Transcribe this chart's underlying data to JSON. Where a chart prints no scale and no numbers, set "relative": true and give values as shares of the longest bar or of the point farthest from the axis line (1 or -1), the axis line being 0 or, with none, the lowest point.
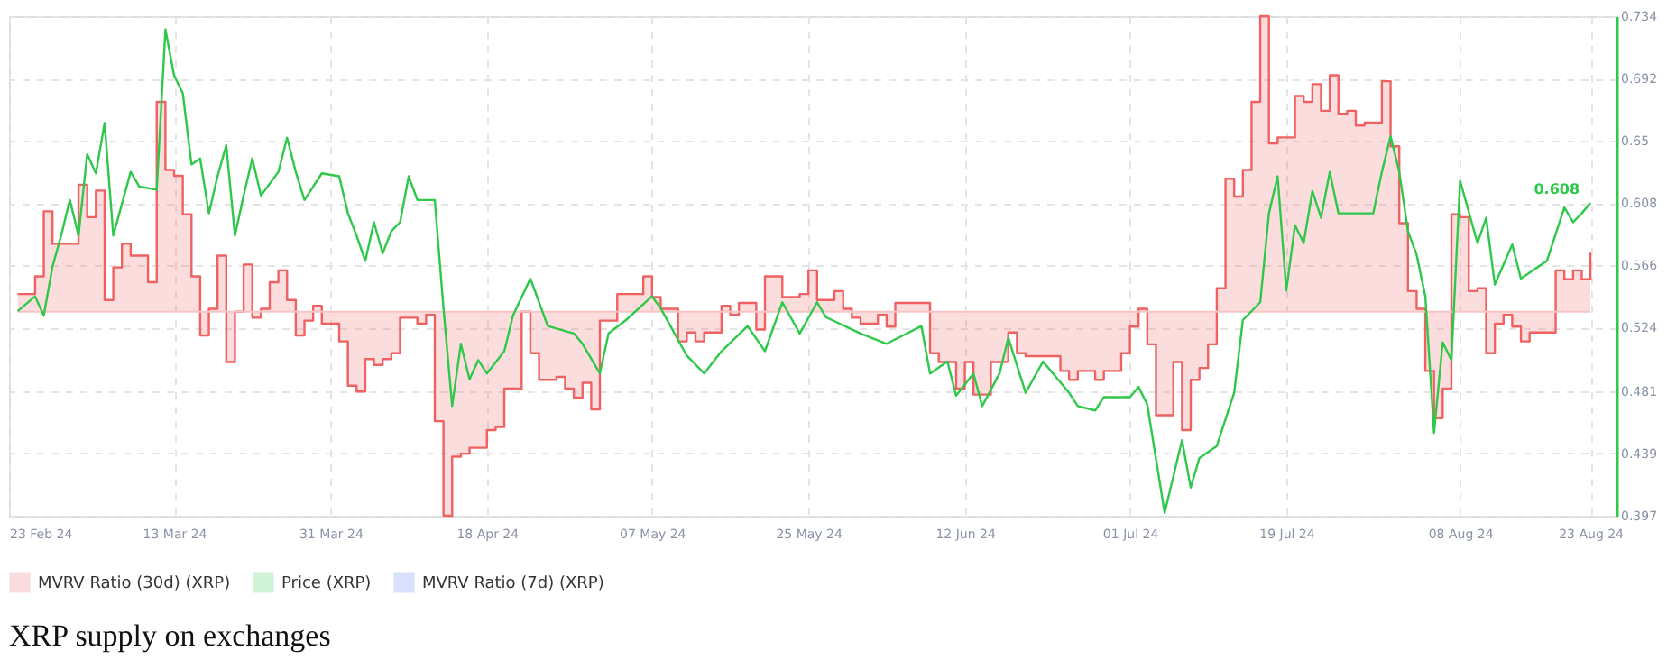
{
  "chart_data": {
    "type": "line",
    "title": "XRP supply on exchanges",
    "relative": true,
    "grid": true,
    "legend": "bottom",
    "xlim": [
      "2024-02-23",
      "2024-08-26"
    ],
    "xticks": [
      {
        "value": "2024-02-23",
        "label": "23 Feb 24"
      },
      {
        "value": "2024-03-13",
        "label": "13 Mar 24"
      },
      {
        "value": "2024-03-31",
        "label": "31 Mar 24"
      },
      {
        "value": "2024-04-18",
        "label": "18 Apr 24"
      },
      {
        "value": "2024-05-07",
        "label": "07 May 24"
      },
      {
        "value": "2024-05-25",
        "label": "25 May 24"
      },
      {
        "value": "2024-06-12",
        "label": "12 Jun 24"
      },
      {
        "value": "2024-07-01",
        "label": "01 Jul 24"
      },
      {
        "value": "2024-07-19",
        "label": "19 Jul 24"
      },
      {
        "value": "2024-08-08",
        "label": "08 Aug 24"
      },
      {
        "value": "2024-08-23",
        "label": "23 Aug 24"
      }
    ],
    "y2lim": [
      0.397,
      0.734
    ],
    "y2ticks": [
      0.397,
      0.439,
      0.481,
      0.524,
      0.566,
      0.608,
      0.65,
      0.692,
      0.734
    ],
    "annotations": [
      "0.608"
    ],
    "ref_lines": [
      {
        "axis": "y",
        "value": 0,
        "color": "#f8c4c4"
      }
    ],
    "series": [
      {
        "name": "MVRV Ratio (30d) (XRP)",
        "type": "step",
        "color": "#f06262",
        "x": [
          "2024-02-24",
          "2024-02-26",
          "2024-02-27",
          "2024-02-28",
          "2024-03-02",
          "2024-03-03",
          "2024-03-04",
          "2024-03-05",
          "2024-03-06",
          "2024-03-07",
          "2024-03-08",
          "2024-03-10",
          "2024-03-11",
          "2024-03-12",
          "2024-03-13",
          "2024-03-14",
          "2024-03-15",
          "2024-03-16",
          "2024-03-17",
          "2024-03-18",
          "2024-03-19",
          "2024-03-20",
          "2024-03-21",
          "2024-03-22",
          "2024-03-23",
          "2024-03-24",
          "2024-03-25",
          "2024-03-26",
          "2024-03-27",
          "2024-03-28",
          "2024-03-29",
          "2024-03-30",
          "2024-04-01",
          "2024-04-02",
          "2024-04-03",
          "2024-04-04",
          "2024-04-05",
          "2024-04-06",
          "2024-04-07",
          "2024-04-08",
          "2024-04-10",
          "2024-04-11",
          "2024-04-12",
          "2024-04-13",
          "2024-04-14",
          "2024-04-15",
          "2024-04-16",
          "2024-04-18",
          "2024-04-19",
          "2024-04-20",
          "2024-04-22",
          "2024-04-23",
          "2024-04-24",
          "2024-04-26",
          "2024-04-27",
          "2024-04-28",
          "2024-04-29",
          "2024-04-30",
          "2024-05-01",
          "2024-05-03",
          "2024-05-06",
          "2024-05-07",
          "2024-05-08",
          "2024-05-10",
          "2024-05-11",
          "2024-05-12",
          "2024-05-13",
          "2024-05-15",
          "2024-05-16",
          "2024-05-17",
          "2024-05-19",
          "2024-05-20",
          "2024-05-22",
          "2024-05-24",
          "2024-05-25",
          "2024-05-26",
          "2024-05-28",
          "2024-05-29",
          "2024-05-30",
          "2024-05-31",
          "2024-06-02",
          "2024-06-03",
          "2024-06-04",
          "2024-06-08",
          "2024-06-09",
          "2024-06-11",
          "2024-06-12",
          "2024-06-13",
          "2024-06-15",
          "2024-06-17",
          "2024-06-18",
          "2024-06-19",
          "2024-06-23",
          "2024-06-24",
          "2024-06-25",
          "2024-06-27",
          "2024-06-28",
          "2024-06-30",
          "2024-07-01",
          "2024-07-02",
          "2024-07-03",
          "2024-07-04",
          "2024-07-06",
          "2024-07-07",
          "2024-07-08",
          "2024-07-09",
          "2024-07-10",
          "2024-07-11",
          "2024-07-12",
          "2024-07-13",
          "2024-07-14",
          "2024-07-15",
          "2024-07-16",
          "2024-07-17",
          "2024-07-18",
          "2024-07-20",
          "2024-07-21",
          "2024-07-22",
          "2024-07-23",
          "2024-07-24",
          "2024-07-25",
          "2024-07-26",
          "2024-07-27",
          "2024-07-28",
          "2024-07-30",
          "2024-07-31",
          "2024-08-01",
          "2024-08-02",
          "2024-08-03",
          "2024-08-04",
          "2024-08-05",
          "2024-08-06",
          "2024-08-07",
          "2024-08-08",
          "2024-08-09",
          "2024-08-10",
          "2024-08-11",
          "2024-08-12",
          "2024-08-13",
          "2024-08-14",
          "2024-08-15",
          "2024-08-16",
          "2024-08-19",
          "2024-08-20",
          "2024-08-21",
          "2024-08-22",
          "2024-08-23"
        ],
        "values": [
          0.06,
          0.12,
          0.34,
          0.23,
          0.43,
          0.32,
          0.41,
          0.04,
          0.15,
          0.23,
          0.19,
          0.1,
          0.71,
          0.48,
          0.46,
          0.33,
          0.12,
          -0.08,
          0.01,
          0.19,
          -0.17,
          0,
          0.16,
          -0.02,
          0.01,
          0.1,
          0.14,
          0.04,
          -0.08,
          -0.03,
          0.02,
          -0.04,
          -0.1,
          -0.25,
          -0.27,
          -0.16,
          -0.18,
          -0.16,
          -0.14,
          -0.02,
          -0.04,
          -0.01,
          -0.37,
          -0.69,
          -0.49,
          -0.48,
          -0.46,
          -0.4,
          -0.39,
          -0.26,
          0,
          -0.14,
          -0.23,
          -0.22,
          -0.26,
          -0.29,
          -0.24,
          -0.33,
          -0.03,
          0.06,
          0.12,
          0.05,
          0.01,
          -0.1,
          -0.07,
          -0.1,
          -0.07,
          0.02,
          -0.01,
          0.03,
          -0.06,
          0.12,
          0.05,
          0.06,
          0.14,
          0.04,
          0.07,
          0.01,
          -0.02,
          -0.04,
          -0.01,
          -0.05,
          0.03,
          -0.14,
          -0.17,
          -0.26,
          -0.17,
          -0.28,
          -0.17,
          -0.07,
          -0.14,
          -0.15,
          -0.2,
          -0.23,
          -0.2,
          -0.23,
          -0.2,
          -0.14,
          -0.05,
          0.01,
          -0.11,
          -0.35,
          -0.17,
          -0.4,
          -0.23,
          -0.19,
          -0.11,
          0.08,
          0.45,
          0.39,
          0.48,
          0.71,
          1.0,
          0.57,
          0.59,
          0.73,
          0.71,
          0.77,
          0.68,
          0.8,
          0.67,
          0.68,
          0.63,
          0.64,
          0.78,
          0.56,
          0.3,
          0.07,
          0.01,
          -0.2,
          -0.36,
          -0.26,
          0.33,
          0.32,
          0.07,
          0.08,
          -0.14,
          -0.04,
          -0.01,
          -0.05,
          -0.1,
          -0.07,
          0.14,
          0.11,
          0.14,
          0.11,
          0.2
        ]
      },
      {
        "name": "Price (XRP)",
        "axis": "y2",
        "color": "#2ec84a",
        "x": [
          "2024-02-24",
          "2024-02-26",
          "2024-02-27",
          "2024-02-28",
          "2024-02-29",
          "2024-03-01",
          "2024-03-02",
          "2024-03-03",
          "2024-03-04",
          "2024-03-05",
          "2024-03-06",
          "2024-03-08",
          "2024-03-09",
          "2024-03-11",
          "2024-03-12",
          "2024-03-13",
          "2024-03-14",
          "2024-03-15",
          "2024-03-16",
          "2024-03-17",
          "2024-03-18",
          "2024-03-19",
          "2024-03-20",
          "2024-03-21",
          "2024-03-22",
          "2024-03-23",
          "2024-03-25",
          "2024-03-26",
          "2024-03-27",
          "2024-03-28",
          "2024-03-30",
          "2024-04-01",
          "2024-04-02",
          "2024-04-03",
          "2024-04-04",
          "2024-04-05",
          "2024-04-06",
          "2024-04-07",
          "2024-04-08",
          "2024-04-09",
          "2024-04-10",
          "2024-04-12",
          "2024-04-13",
          "2024-04-14",
          "2024-04-15",
          "2024-04-16",
          "2024-04-17",
          "2024-04-18",
          "2024-04-20",
          "2024-04-21",
          "2024-04-23",
          "2024-04-24",
          "2024-04-25",
          "2024-04-28",
          "2024-04-29",
          "2024-05-01",
          "2024-05-02",
          "2024-05-04",
          "2024-05-07",
          "2024-05-08",
          "2024-05-11",
          "2024-05-13",
          "2024-05-15",
          "2024-05-18",
          "2024-05-20",
          "2024-05-22",
          "2024-05-24",
          "2024-05-26",
          "2024-05-27",
          "2024-05-31",
          "2024-06-03",
          "2024-06-07",
          "2024-06-08",
          "2024-06-10",
          "2024-06-11",
          "2024-06-13",
          "2024-06-14",
          "2024-06-16",
          "2024-06-17",
          "2024-06-19",
          "2024-06-21",
          "2024-06-24",
          "2024-06-25",
          "2024-06-27",
          "2024-06-28",
          "2024-07-01",
          "2024-07-02",
          "2024-07-03",
          "2024-07-05",
          "2024-07-07",
          "2024-07-08",
          "2024-07-09",
          "2024-07-11",
          "2024-07-13",
          "2024-07-14",
          "2024-07-16",
          "2024-07-17",
          "2024-07-18",
          "2024-07-19",
          "2024-07-20",
          "2024-07-21",
          "2024-07-22",
          "2024-07-23",
          "2024-07-24",
          "2024-07-25",
          "2024-07-27",
          "2024-07-29",
          "2024-07-30",
          "2024-07-31",
          "2024-08-01",
          "2024-08-02",
          "2024-08-03",
          "2024-08-04",
          "2024-08-05",
          "2024-08-06",
          "2024-08-07",
          "2024-08-08",
          "2024-08-10",
          "2024-08-11",
          "2024-08-12",
          "2024-08-14",
          "2024-08-15",
          "2024-08-17",
          "2024-08-18",
          "2024-08-20",
          "2024-08-21",
          "2024-08-22",
          "2024-08-23"
        ],
        "values": [
          0.535,
          0.545,
          0.532,
          0.565,
          0.586,
          0.61,
          0.586,
          0.641,
          0.628,
          0.662,
          0.586,
          0.629,
          0.619,
          0.617,
          0.725,
          0.694,
          0.682,
          0.634,
          0.638,
          0.601,
          0.626,
          0.647,
          0.586,
          0.613,
          0.638,
          0.613,
          0.629,
          0.652,
          0.629,
          0.61,
          0.628,
          0.626,
          0.601,
          0.586,
          0.569,
          0.595,
          0.574,
          0.589,
          0.595,
          0.626,
          0.61,
          0.61,
          0.537,
          0.471,
          0.513,
          0.489,
          0.502,
          0.493,
          0.508,
          0.532,
          0.557,
          0.541,
          0.525,
          0.52,
          0.513,
          0.493,
          0.52,
          0.529,
          0.545,
          0.537,
          0.505,
          0.493,
          0.508,
          0.525,
          0.508,
          0.541,
          0.52,
          0.541,
          0.531,
          0.52,
          0.513,
          0.525,
          0.493,
          0.501,
          0.478,
          0.493,
          0.471,
          0.493,
          0.517,
          0.48,
          0.501,
          0.48,
          0.471,
          0.468,
          0.477,
          0.477,
          0.484,
          0.472,
          0.399,
          0.448,
          0.416,
          0.436,
          0.444,
          0.48,
          0.529,
          0.541,
          0.601,
          0.626,
          0.549,
          0.593,
          0.581,
          0.616,
          0.598,
          0.629,
          0.601,
          0.601,
          0.601,
          0.629,
          0.653,
          0.629,
          0.589,
          0.573,
          0.545,
          0.453,
          0.514,
          0.502,
          0.623,
          0.581,
          0.598,
          0.553,
          0.58,
          0.557,
          0.565,
          0.569,
          0.605,
          0.595,
          0.601,
          0.608
        ]
      },
      {
        "name": "MVRV Ratio (7d) (XRP)",
        "color": "#4c7cf3"
      }
    ]
  }
}
